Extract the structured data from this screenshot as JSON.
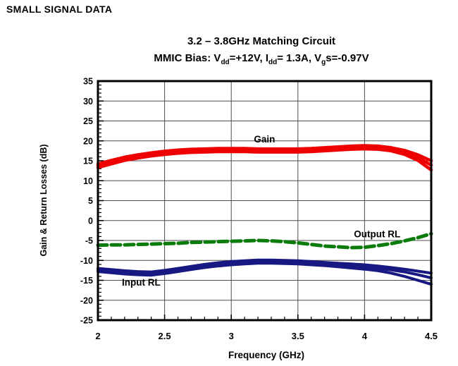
{
  "page": {
    "header": "SMALL SIGNAL DATA"
  },
  "chart_data": {
    "type": "line",
    "title": "3.2 – 3.8GHz Matching Circuit",
    "subtitle_parts": [
      {
        "t": "MMIC Bias: V"
      },
      {
        "t": "dd",
        "sub": true
      },
      {
        "t": "=+12V, I"
      },
      {
        "t": "dd",
        "sub": true
      },
      {
        "t": "= 1.3A, V"
      },
      {
        "t": "g",
        "sub": true
      },
      {
        "t": "s=-0.97V"
      }
    ],
    "xlabel": "Frequency (GHz)",
    "ylabel": "Gain & Return Losses (dB)",
    "xlim": [
      2,
      4.5
    ],
    "ylim": [
      -25,
      35
    ],
    "grid": true,
    "legend_position": "inline-annotations",
    "x_major_ticks": [
      2,
      2.5,
      3,
      3.5,
      4,
      4.5
    ],
    "x_tick_labels": [
      "2",
      "2.5",
      "3",
      "3.5",
      "4",
      "4.5"
    ],
    "x_minor_step": 0.1,
    "y_major_ticks": [
      35,
      30,
      25,
      20,
      15,
      10,
      5,
      0,
      -5,
      -10,
      -15,
      -20,
      -25
    ],
    "y_tick_labels": [
      "35",
      "30",
      "25",
      "20",
      "15",
      "10",
      "5",
      "0",
      "-5",
      "-10",
      "-15",
      "-20",
      "-25"
    ],
    "y_minor_step": 1,
    "colors": {
      "gain": "#ee0000",
      "input_rl": "#181883",
      "output_rl": "#0b7c0b",
      "grid": "#4d4d4d",
      "axis": "#000000"
    },
    "x": [
      2.0,
      2.1,
      2.2,
      2.3,
      2.4,
      2.5,
      2.6,
      2.7,
      2.8,
      2.9,
      3.0,
      3.1,
      3.2,
      3.3,
      3.4,
      3.5,
      3.6,
      3.7,
      3.8,
      3.9,
      4.0,
      4.1,
      4.2,
      4.3,
      4.4,
      4.5
    ],
    "series": [
      {
        "name": "Gain",
        "color_key": "gain",
        "style": "solid",
        "width": 4.5,
        "traces": [
          [
            14.2,
            15.1,
            15.9,
            16.5,
            17.0,
            17.4,
            17.7,
            17.9,
            18.0,
            18.1,
            18.1,
            18.1,
            18.0,
            18.0,
            18.0,
            18.0,
            18.1,
            18.3,
            18.5,
            18.7,
            18.8,
            18.7,
            18.3,
            17.6,
            16.5,
            15.0
          ],
          [
            13.8,
            14.7,
            15.5,
            16.1,
            16.6,
            17.0,
            17.3,
            17.5,
            17.6,
            17.7,
            17.7,
            17.7,
            17.6,
            17.6,
            17.6,
            17.6,
            17.7,
            17.9,
            18.1,
            18.3,
            18.4,
            18.3,
            17.9,
            17.1,
            15.8,
            13.9
          ],
          [
            13.3,
            14.2,
            15.1,
            15.7,
            16.2,
            16.6,
            16.9,
            17.1,
            17.2,
            17.3,
            17.3,
            17.3,
            17.2,
            17.2,
            17.2,
            17.2,
            17.3,
            17.5,
            17.7,
            17.9,
            18.0,
            17.9,
            17.5,
            16.6,
            15.1,
            12.7
          ]
        ]
      },
      {
        "name": "Input RL",
        "color_key": "input_rl",
        "style": "solid",
        "width": 4,
        "traces": [
          [
            -12.0,
            -12.3,
            -12.6,
            -12.8,
            -12.9,
            -12.5,
            -12.0,
            -11.5,
            -11.0,
            -10.6,
            -10.3,
            -10.1,
            -9.9,
            -9.9,
            -10.0,
            -10.1,
            -10.3,
            -10.5,
            -10.7,
            -10.9,
            -11.1,
            -11.4,
            -11.8,
            -12.2,
            -12.7,
            -13.2
          ],
          [
            -12.4,
            -12.7,
            -13.0,
            -13.2,
            -13.3,
            -12.9,
            -12.4,
            -11.9,
            -11.4,
            -11.0,
            -10.7,
            -10.5,
            -10.3,
            -10.3,
            -10.4,
            -10.5,
            -10.7,
            -10.9,
            -11.1,
            -11.4,
            -11.6,
            -12.0,
            -12.4,
            -12.9,
            -13.6,
            -14.4
          ],
          [
            -12.8,
            -13.1,
            -13.4,
            -13.6,
            -13.7,
            -13.3,
            -12.8,
            -12.3,
            -11.8,
            -11.4,
            -11.1,
            -10.9,
            -10.7,
            -10.7,
            -10.8,
            -10.9,
            -11.1,
            -11.3,
            -11.6,
            -11.9,
            -12.2,
            -12.6,
            -13.2,
            -14.0,
            -15.0,
            -16.0
          ]
        ]
      },
      {
        "name": "Output RL",
        "color_key": "output_rl",
        "style": "dashed",
        "width": 5,
        "traces": [
          [
            -6.2,
            -6.1,
            -6.1,
            -6.0,
            -5.9,
            -5.8,
            -5.7,
            -5.5,
            -5.4,
            -5.3,
            -5.2,
            -5.1,
            -5.0,
            -5.1,
            -5.3,
            -5.6,
            -6.0,
            -6.4,
            -6.6,
            -6.8,
            -6.7,
            -6.3,
            -5.8,
            -5.1,
            -4.3,
            -3.3
          ]
        ]
      }
    ],
    "annotations": [
      {
        "text": "Gain",
        "f": 3.17,
        "v": 19.6,
        "anchor": "start"
      },
      {
        "text": "Output RL",
        "f": 3.92,
        "v": -4.2,
        "anchor": "start"
      },
      {
        "text": "Input RL",
        "f": 2.18,
        "v": -16.3,
        "anchor": "start"
      }
    ]
  }
}
